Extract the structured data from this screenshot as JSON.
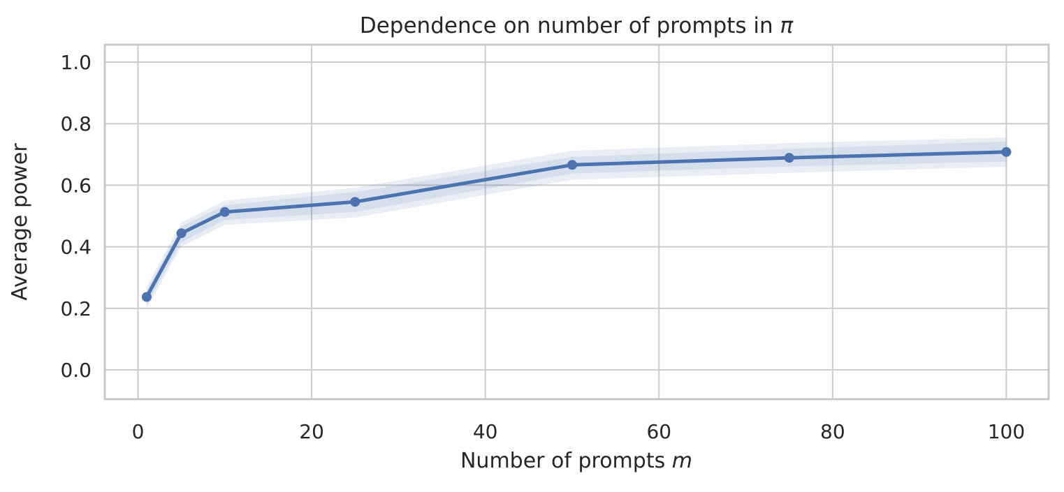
{
  "chart_data": {
    "type": "line",
    "title": {
      "text": "Dependence on number of prompts in ",
      "math_suffix": "π"
    },
    "xlabel": {
      "text": "Number of prompts ",
      "math_suffix": "m"
    },
    "ylabel": "Average power",
    "x": [
      1,
      5,
      10,
      25,
      50,
      75,
      100
    ],
    "series": [
      {
        "name": "average-power",
        "values": [
          0.237,
          0.444,
          0.513,
          0.546,
          0.666,
          0.689,
          0.708
        ],
        "marker": "circle"
      }
    ],
    "band_inner": {
      "lo": [
        0.213,
        0.415,
        0.487,
        0.513,
        0.638,
        0.661,
        0.677
      ],
      "hi": [
        0.258,
        0.466,
        0.535,
        0.578,
        0.692,
        0.718,
        0.742
      ]
    },
    "band_outer": {
      "lo": [
        0.2,
        0.401,
        0.471,
        0.495,
        0.618,
        0.64,
        0.66
      ],
      "hi": [
        0.271,
        0.479,
        0.55,
        0.592,
        0.712,
        0.737,
        0.755
      ]
    },
    "x_ticks": [
      {
        "value": 0,
        "label": "0"
      },
      {
        "value": 20,
        "label": "20"
      },
      {
        "value": 40,
        "label": "40"
      },
      {
        "value": 60,
        "label": "60"
      },
      {
        "value": 80,
        "label": "80"
      },
      {
        "value": 100,
        "label": "100"
      }
    ],
    "y_ticks": [
      {
        "value": 0.0,
        "label": "0.0"
      },
      {
        "value": 0.2,
        "label": "0.2"
      },
      {
        "value": 0.4,
        "label": "0.4"
      },
      {
        "value": 0.6,
        "label": "0.6"
      },
      {
        "value": 0.8,
        "label": "0.8"
      },
      {
        "value": 1.0,
        "label": "1.0"
      }
    ],
    "xlim": [
      -3.82,
      104.87
    ],
    "ylim": [
      -0.0952,
      1.0567
    ],
    "grid": true,
    "legend": "none",
    "colors": {
      "line": "#4C72B0",
      "marker": "#4C72B0",
      "band": "#4C72B0",
      "band_alpha": 0.12,
      "grid": "#cccccc",
      "spine": "#c6c6c6",
      "text": "#262626",
      "background": "#ffffff"
    }
  }
}
